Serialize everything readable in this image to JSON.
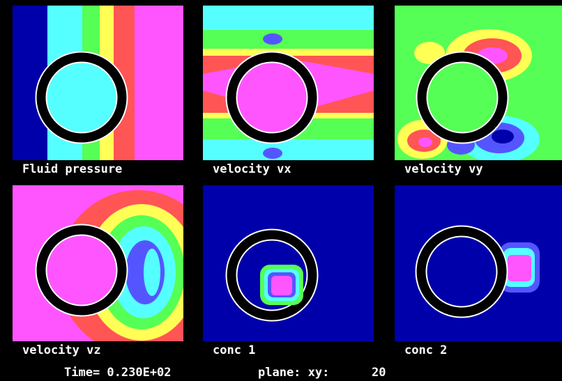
{
  "panels": [
    {
      "label": "Fluid pressure"
    },
    {
      "label": "velocity vx"
    },
    {
      "label": "velocity vy"
    },
    {
      "label": "velocity vz"
    },
    {
      "label": "conc 1"
    },
    {
      "label": "conc 2"
    }
  ],
  "footer": {
    "time": "Time= 0.230E+02",
    "plane": "plane: xy:",
    "level": 20
  }
}
